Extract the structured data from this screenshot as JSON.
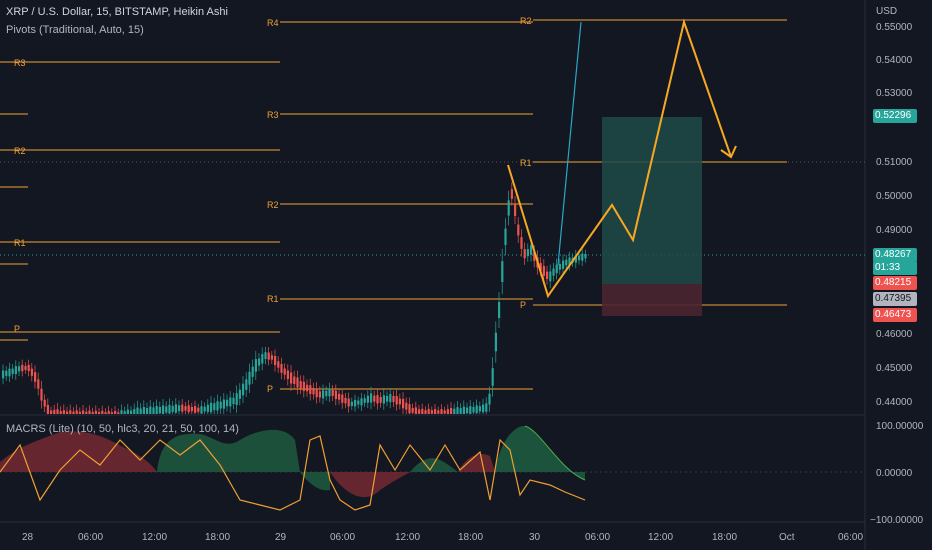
{
  "header": {
    "symbol_line": "XRP / U.S. Dollar, 15, BITSTAMP, Heikin Ashi",
    "pivots_line": "Pivots (Traditional, Auto, 15)"
  },
  "indicator": {
    "title": "MACRS (Lite) (10, 50, hlc3, 20, 21, 50, 100, 14)",
    "axis_labels": [
      "100.00000",
      "0.00000",
      "−100.00000"
    ]
  },
  "price_axis": {
    "currency": "USD",
    "ticks": [
      "0.55000",
      "0.54000",
      "0.53000",
      "0.51000",
      "0.50000",
      "0.49000",
      "0.46000",
      "0.45000",
      "0.44000"
    ]
  },
  "time_axis": {
    "ticks": [
      "28",
      "06:00",
      "12:00",
      "18:00",
      "29",
      "06:00",
      "12:00",
      "18:00",
      "30",
      "06:00",
      "12:00",
      "18:00",
      "Oct",
      "06:00"
    ]
  },
  "price_tags": {
    "target": "0.52296",
    "current": "0.48267",
    "countdown": "01:33",
    "red_upper": "0.48215",
    "gray": "0.47395",
    "red_lower": "0.46473"
  },
  "pivot_labels": {
    "seg1": [
      "R3",
      "R2",
      "R1",
      "P"
    ],
    "seg2": [
      "R4",
      "R3",
      "R2",
      "R1",
      "P"
    ],
    "seg3": [
      "R2",
      "R1",
      "P"
    ]
  },
  "colors": {
    "background": "#131722",
    "pivot": "#f0a032",
    "up_candle": "#26a69a",
    "down_candle": "#ef5350",
    "target_zone": "#1f4a48",
    "stop_zone": "#4a2530",
    "projection": "#f7a823",
    "trend_line": "#2aa6c8"
  },
  "icons": [
    "countdown-clock"
  ]
}
